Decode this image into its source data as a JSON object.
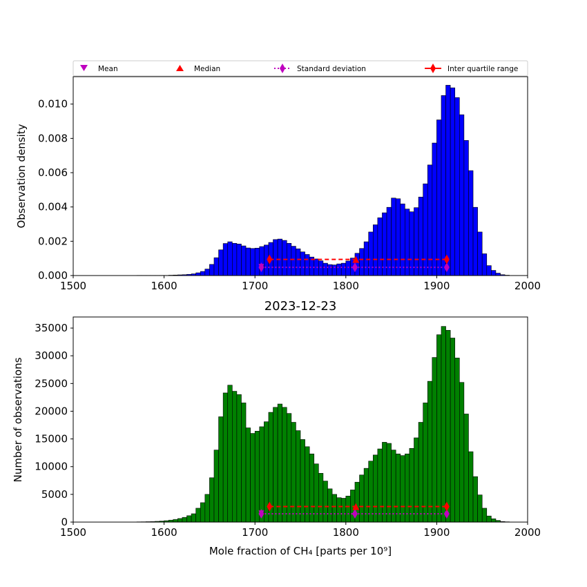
{
  "chart_data": [
    {
      "type": "bar",
      "panel": "density",
      "title": "",
      "xlabel": "",
      "ylabel": "Observation density",
      "xlim": [
        1500,
        2000
      ],
      "ylim": [
        0,
        0.0116
      ],
      "xticks": [
        1500,
        1600,
        1700,
        1800,
        1900,
        2000
      ],
      "yticks": [
        0.0,
        0.002,
        0.004,
        0.006,
        0.008,
        0.01
      ],
      "ytick_labels": [
        "0.000",
        "0.002",
        "0.004",
        "0.006",
        "0.008",
        "0.010"
      ],
      "bar_color": "#0000ff",
      "bin_start": 1570,
      "bin_width": 5,
      "values": [
        1e-05,
        1e-05,
        1e-05,
        1e-05,
        1e-05,
        1e-05,
        1e-05,
        2e-05,
        3e-05,
        4e-05,
        5e-05,
        7e-05,
        0.0001,
        0.00016,
        0.00024,
        0.00038,
        0.00065,
        0.00104,
        0.0015,
        0.00187,
        0.00197,
        0.00188,
        0.00184,
        0.00173,
        0.00161,
        0.00158,
        0.0016,
        0.00169,
        0.00178,
        0.00193,
        0.0021,
        0.00213,
        0.00205,
        0.00188,
        0.00171,
        0.00156,
        0.00138,
        0.00123,
        0.00108,
        0.00097,
        0.00086,
        0.00072,
        0.00064,
        0.00062,
        0.00068,
        0.00072,
        0.00085,
        0.00102,
        0.0013,
        0.00158,
        0.00197,
        0.00254,
        0.00296,
        0.00337,
        0.00366,
        0.00398,
        0.00452,
        0.00448,
        0.00418,
        0.00388,
        0.00372,
        0.00396,
        0.00458,
        0.00535,
        0.00645,
        0.00773,
        0.00908,
        0.0105,
        0.0111,
        0.01095,
        0.01038,
        0.00938,
        0.00788,
        0.00612,
        0.00398,
        0.00254,
        0.00127,
        0.00058,
        0.0003,
        0.00014,
        5e-05,
        2e-05
      ],
      "stats": {
        "mean": {
          "x": 1707,
          "y": 0.00048
        },
        "std_range": [
          1707,
          1911
        ],
        "median": {
          "x": 1811,
          "y": 0.00094
        },
        "iqr_range": [
          1716,
          1911
        ]
      }
    },
    {
      "type": "bar",
      "panel": "counts",
      "title": "2023-12-23",
      "xlabel": "Mole fraction of CH₄ [parts per 10⁹]",
      "ylabel": "Number of observations",
      "xlim": [
        1500,
        2000
      ],
      "ylim": [
        0,
        37000
      ],
      "xticks": [
        1500,
        1600,
        1700,
        1800,
        1900,
        2000
      ],
      "yticks": [
        0,
        5000,
        10000,
        15000,
        20000,
        25000,
        30000,
        35000
      ],
      "ytick_labels": [
        "0",
        "5000",
        "10000",
        "15000",
        "20000",
        "25000",
        "30000",
        "35000"
      ],
      "bar_color": "#008000",
      "bin_start": 1570,
      "bin_width": 5,
      "values": [
        40,
        50,
        70,
        90,
        130,
        180,
        250,
        350,
        480,
        640,
        850,
        1150,
        1500,
        2500,
        3500,
        5000,
        8000,
        13000,
        19000,
        23300,
        24700,
        23600,
        23000,
        21500,
        17000,
        16000,
        16400,
        17200,
        18100,
        19800,
        20700,
        21300,
        20700,
        19600,
        18000,
        16500,
        14900,
        13600,
        12300,
        10500,
        8800,
        7400,
        6000,
        5000,
        4400,
        4300,
        4700,
        5800,
        7200,
        8500,
        9700,
        11000,
        12100,
        13200,
        14400,
        14200,
        13000,
        12300,
        12000,
        12300,
        13300,
        15200,
        18000,
        21500,
        25400,
        29700,
        33800,
        35300,
        34600,
        33200,
        29600,
        25200,
        19500,
        12700,
        8200,
        4900,
        2500,
        1100,
        600,
        300,
        100,
        50
      ],
      "stats": {
        "mean": {
          "x": 1707,
          "y": 1500
        },
        "std_range": [
          1707,
          1911
        ],
        "median": {
          "x": 1811,
          "y": 2800
        },
        "iqr_range": [
          1716,
          1911
        ]
      }
    }
  ],
  "legend": {
    "placement": "top",
    "entries": [
      {
        "label": "Mean",
        "marker": "triangle-down",
        "color": "#bf00bf"
      },
      {
        "label": "Median",
        "marker": "triangle-up",
        "color": "#ff0000"
      },
      {
        "label": "Standard deviation",
        "marker": "diamond",
        "color": "#bf00bf",
        "line": "dotted"
      },
      {
        "label": "Inter quartile range",
        "marker": "diamond",
        "color": "#ff0000",
        "line": "solid"
      }
    ]
  }
}
